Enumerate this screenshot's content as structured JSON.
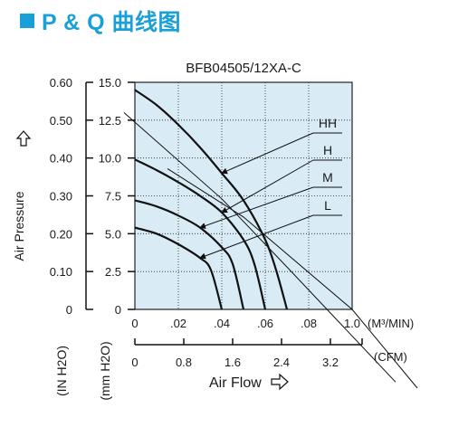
{
  "header": {
    "title": "P & Q 曲线图"
  },
  "colors": {
    "accent": "#1aa0d8",
    "plot_bg": "#d9ecf6",
    "grid": "#222222",
    "curve": "#111111"
  },
  "chart_data": {
    "type": "line",
    "title": "BFB04505/12XA-C",
    "xlim": [
      0,
      1.0
    ],
    "ylim": [
      0,
      15.0
    ],
    "x_axis_primary": {
      "unit": "(M³/MIN)",
      "tick_labels": [
        "0",
        ".02",
        ".04",
        ".06",
        ".08",
        "1.0"
      ]
    },
    "x_axis_secondary": {
      "label": "Air Flow",
      "unit": "(CFM)",
      "tick_labels": [
        "0",
        "0.8",
        "1.6",
        "2.4",
        "3.2"
      ]
    },
    "y_axis_inh2o": {
      "unit": "(IN H2O)",
      "tick_labels": [
        "0.60",
        "0.50",
        "0.40",
        "0.30",
        "0.20",
        "0.10",
        "0"
      ]
    },
    "y_axis_mmh2o": {
      "unit": "(mm H2O)",
      "tick_labels": [
        "15.0",
        "12.5",
        "10.0",
        "7.5",
        "5.0",
        "2.5",
        "0"
      ]
    },
    "y_axis_label": "Air Pressure",
    "series": [
      {
        "name": "HH",
        "x": [
          0.0,
          0.1,
          0.2,
          0.3,
          0.4,
          0.5,
          0.6,
          0.65,
          0.7
        ],
        "y": [
          14.5,
          13.5,
          12.2,
          10.7,
          9.0,
          7.2,
          4.6,
          2.6,
          0.0
        ]
      },
      {
        "name": "H",
        "x": [
          0.0,
          0.1,
          0.2,
          0.3,
          0.4,
          0.5,
          0.55,
          0.6
        ],
        "y": [
          9.9,
          9.2,
          8.4,
          7.5,
          6.4,
          4.6,
          3.0,
          0.0
        ]
      },
      {
        "name": "M",
        "x": [
          0.0,
          0.1,
          0.2,
          0.3,
          0.4,
          0.45,
          0.5
        ],
        "y": [
          7.2,
          6.8,
          6.2,
          5.4,
          4.1,
          3.0,
          0.0
        ]
      },
      {
        "name": "L",
        "x": [
          0.0,
          0.1,
          0.2,
          0.3,
          0.35,
          0.4
        ],
        "y": [
          5.4,
          5.0,
          4.3,
          3.4,
          2.6,
          0.0
        ]
      }
    ],
    "system_impedance_lines": [
      {
        "x": [
          -0.05,
          0.4,
          0.7,
          1.2
        ],
        "y": [
          13.0,
          7.3,
          2.8,
          -4.8
        ]
      },
      {
        "x": [
          0.15,
          0.5,
          1.0,
          1.3
        ],
        "y": [
          9.3,
          6.1,
          0.0,
          -5.2
        ]
      }
    ],
    "grid": true,
    "legend": "right, arrow-pointed labels"
  }
}
